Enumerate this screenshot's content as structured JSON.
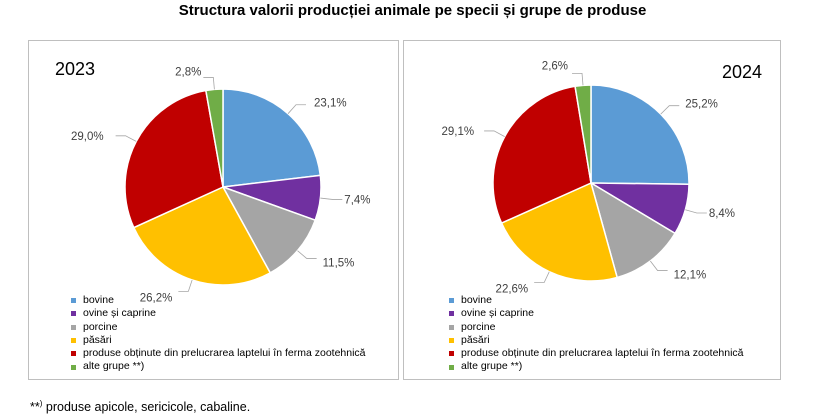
{
  "title": "Structura valorii producției animale pe specii și grupe de produse",
  "chart_data": [
    {
      "type": "pie",
      "title": "2023",
      "categories": [
        "bovine",
        "ovine și caprine",
        "porcine",
        "păsări",
        "produse obținute din prelucrarea  laptelui în ferma zootehnică",
        "alte grupe **)"
      ],
      "values": [
        23.1,
        7.4,
        11.5,
        26.2,
        29.0,
        2.8
      ],
      "labels": [
        "23,1%",
        "7,4%",
        "11,5%",
        "26,2%",
        "29,0%",
        "2,8%"
      ],
      "colors": [
        "#5b9bd5",
        "#7030a0",
        "#a5a5a5",
        "#ffc000",
        "#c00000",
        "#70ad47"
      ]
    },
    {
      "type": "pie",
      "title": "2024",
      "categories": [
        "bovine",
        "ovine și caprine",
        "porcine",
        "păsări",
        "produse obținute din prelucrarea  laptelui în ferma zootehnică",
        "alte grupe **)"
      ],
      "values": [
        25.2,
        8.4,
        12.1,
        22.6,
        29.1,
        2.6
      ],
      "labels": [
        "25,2%",
        "8,4%",
        "12,1%",
        "22,6%",
        "29,1%",
        "2,6%"
      ],
      "colors": [
        "#5b9bd5",
        "#7030a0",
        "#a5a5a5",
        "#ffc000",
        "#c00000",
        "#70ad47"
      ]
    }
  ],
  "footnote": {
    "marker": "**",
    "sup": ")",
    "text": " produse apicole, sericicole, cabaline."
  }
}
